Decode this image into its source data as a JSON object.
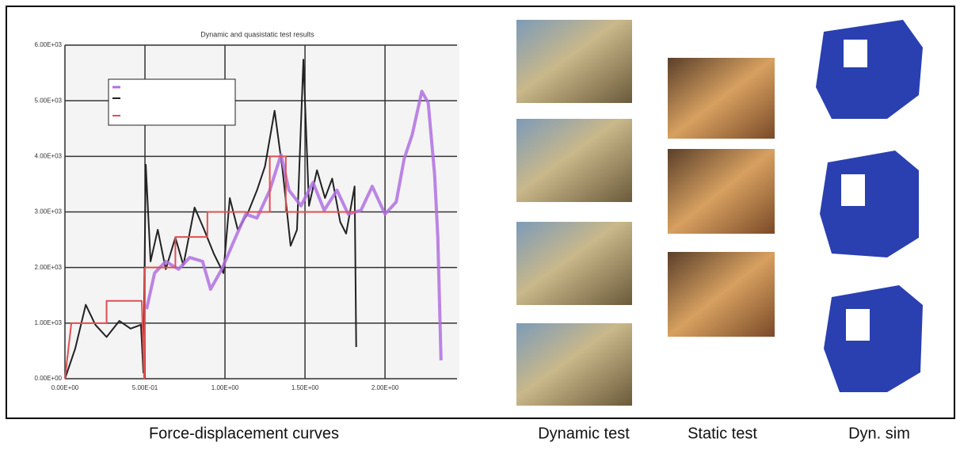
{
  "chart_data": {
    "type": "line",
    "title": "Dynamic and quasistatic test results",
    "xlim": [
      0,
      2.45
    ],
    "ylim": [
      0,
      6000
    ],
    "xticks": [
      {
        "value": 0,
        "label": "0.00E+00"
      },
      {
        "value": 0.5,
        "label": "5.00E-01"
      },
      {
        "value": 1,
        "label": "1.00E+00"
      },
      {
        "value": 1.5,
        "label": "1.50E+00"
      },
      {
        "value": 2,
        "label": "2.00E+00"
      }
    ],
    "yticks": [
      {
        "value": 0,
        "label": "0.00E+00"
      },
      {
        "value": 1000,
        "label": "1.00E+03"
      },
      {
        "value": 2000,
        "label": "2.00E+03"
      },
      {
        "value": 3000,
        "label": "3.00E+03"
      },
      {
        "value": 4000,
        "label": "4.00E+03"
      },
      {
        "value": 5000,
        "label": "5.00E+03"
      },
      {
        "value": 6000,
        "label": "6.00E+03"
      }
    ],
    "grid": true,
    "series": [
      {
        "color": "#222222",
        "x": [
          0,
          0.064,
          0.13,
          0.19,
          0.26,
          0.34,
          0.41,
          0.475,
          0.49,
          0.505,
          0.535,
          0.58,
          0.63,
          0.69,
          0.74,
          0.81,
          0.87,
          0.93,
          0.99,
          1.03,
          1.08,
          1.14,
          1.2,
          1.25,
          1.31,
          1.36,
          1.41,
          1.45,
          1.49,
          1.525,
          1.575,
          1.625,
          1.67,
          1.72,
          1.757,
          1.81,
          1.82
        ],
        "values": [
          0,
          540,
          1330,
          970,
          750,
          1040,
          900,
          970,
          110,
          3850,
          2110,
          2680,
          1970,
          2540,
          2040,
          3080,
          2680,
          2250,
          1900,
          3250,
          2680,
          2960,
          3390,
          3820,
          4820,
          3750,
          2390,
          2680,
          5740,
          3110,
          3750,
          3250,
          3600,
          2820,
          2610,
          3460,
          570
        ]
      },
      {
        "color": "#b070e0",
        "x": [
          0.51,
          0.56,
          0.63,
          0.71,
          0.78,
          0.86,
          0.91,
          0.98,
          1.055,
          1.13,
          1.2,
          1.28,
          1.35,
          1.4,
          1.475,
          1.55,
          1.62,
          1.7,
          1.77,
          1.85,
          1.92,
          2.0,
          2.07,
          2.12,
          2.17,
          2.23,
          2.27,
          2.31,
          2.33,
          2.35
        ],
        "values": [
          1250,
          1900,
          2110,
          1970,
          2180,
          2110,
          1610,
          1970,
          2470,
          2960,
          2890,
          3390,
          4030,
          3390,
          3110,
          3530,
          3030,
          3390,
          2960,
          3030,
          3460,
          2960,
          3180,
          3960,
          4390,
          5170,
          4960,
          3670,
          2540,
          330
        ]
      },
      {
        "color": "#e05050",
        "x": [
          0,
          0.04,
          0.26,
          0.26,
          0.48,
          0.495,
          0.5,
          0.69,
          0.69,
          0.89,
          0.89,
          1.28,
          1.28,
          1.38,
          1.38,
          1.82
        ],
        "values": [
          0,
          1000,
          1000,
          1400,
          1400,
          0,
          2000,
          2000,
          2550,
          2550,
          3000,
          3000,
          4000,
          4000,
          3000,
          3000
        ]
      }
    ]
  },
  "captions": [
    "Force-displacement curves",
    "Dynamic test",
    "Static test",
    "Dyn. sim"
  ]
}
